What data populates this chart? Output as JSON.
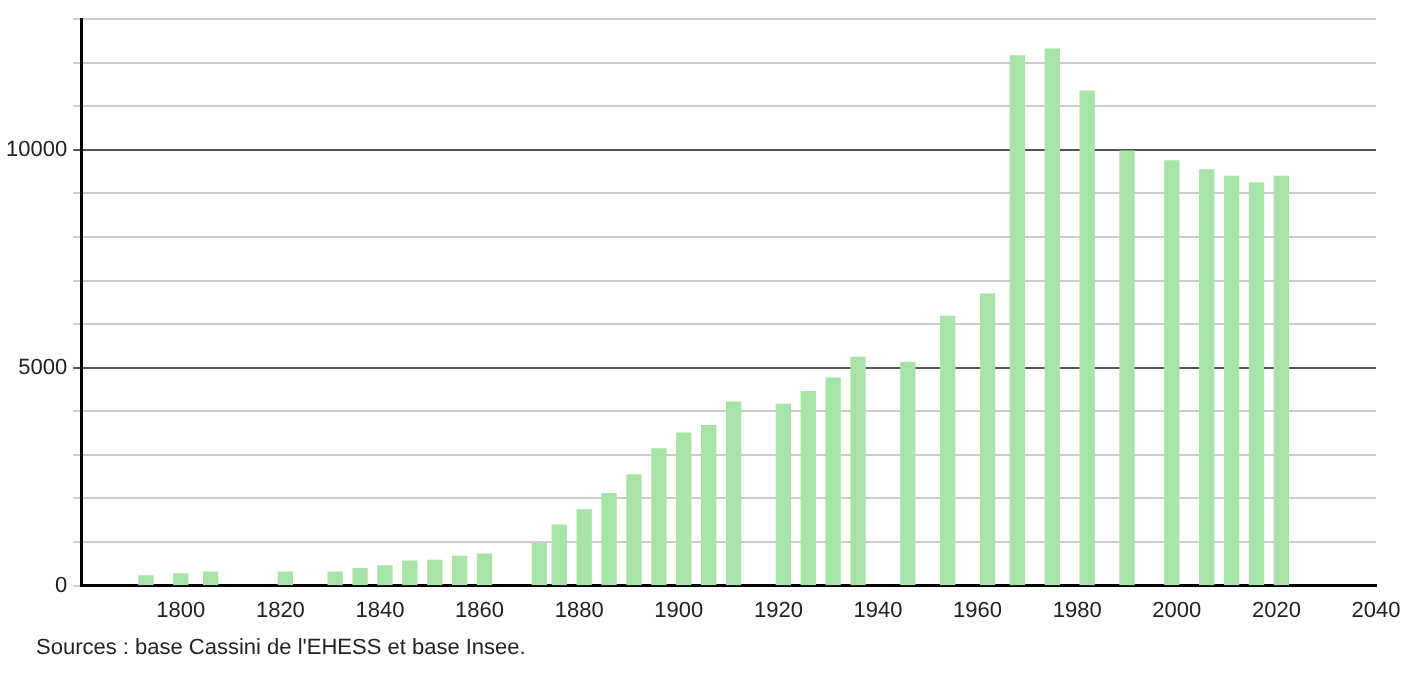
{
  "chart_data": {
    "type": "bar",
    "x": [
      1793,
      1800,
      1806,
      1821,
      1831,
      1836,
      1841,
      1846,
      1851,
      1856,
      1861,
      1872,
      1876,
      1881,
      1886,
      1891,
      1896,
      1901,
      1906,
      1911,
      1921,
      1926,
      1931,
      1936,
      1946,
      1954,
      1962,
      1968,
      1975,
      1982,
      1990,
      1999,
      2006,
      2011,
      2016,
      2021
    ],
    "values": [
      220,
      270,
      310,
      310,
      310,
      390,
      450,
      560,
      580,
      670,
      720,
      970,
      1390,
      1740,
      2110,
      2540,
      3140,
      3500,
      3670,
      4210,
      4160,
      4450,
      4760,
      5240,
      5120,
      6180,
      6690,
      12160,
      12310,
      11350,
      9970,
      9750,
      9540,
      9390,
      9240,
      9390
    ],
    "color": "#a8e4a8",
    "xlim": [
      1780,
      2040
    ],
    "xticks": [
      1800,
      1820,
      1840,
      1860,
      1880,
      1900,
      1920,
      1940,
      1960,
      1980,
      2000,
      2020,
      2040
    ],
    "ylim": [
      0,
      13000
    ],
    "yticks": [
      0,
      {
        "value": 1000,
        "label": null
      },
      {
        "value": 2000,
        "label": null
      },
      {
        "value": 3000,
        "label": null
      },
      {
        "value": 4000,
        "label": null
      },
      5000,
      {
        "value": 6000,
        "label": null
      },
      {
        "value": 7000,
        "label": null
      },
      {
        "value": 8000,
        "label": null
      },
      {
        "value": 9000,
        "label": null
      },
      10000,
      {
        "value": 11000,
        "label": null
      },
      {
        "value": 12000,
        "label": null
      },
      {
        "value": 13000,
        "label": null
      }
    ],
    "grid": "y",
    "legend": false,
    "annotations": [
      "Sources : base Cassini de l'EHESS et base Insee."
    ]
  }
}
